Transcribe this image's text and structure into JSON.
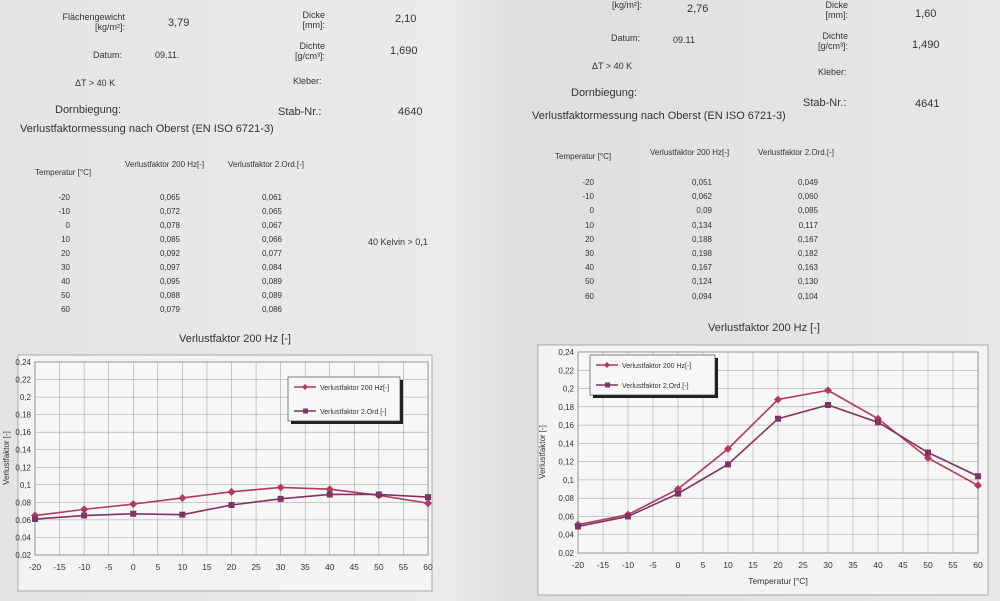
{
  "panels": [
    {
      "fields": [
        {
          "label": "Flächengewicht\n[kg/m²]:",
          "value": "3,79"
        },
        {
          "label": "Dicke\n[mm]:",
          "value": "2,10"
        },
        {
          "label": "Datum:",
          "value": "09.11."
        },
        {
          "label": "Dichte\n[g/cm³]:",
          "value": "1,690"
        }
      ],
      "delta_t": "ΔT > 40 K",
      "kleber": "Kleber:",
      "dornbiegung": "Dornbiegung:",
      "stab_label": "Stab-Nr.:",
      "stab_nr": "4640",
      "heading": "Verlustfaktormessung nach Oberst (EN ISO 6721-3)",
      "table": {
        "header": [
          "Temperatur [°C]",
          "Verlustfaktor 200 Hz[-]",
          "Verlustfaktor 2.Ord.[-]"
        ],
        "rows": [
          [
            "-20",
            "0,065",
            "0,061"
          ],
          [
            "-10",
            "0,072",
            "0,065"
          ],
          [
            "0",
            "0,078",
            "0,067"
          ],
          [
            "10",
            "0,085",
            "0,066"
          ],
          [
            "20",
            "0,092",
            "0,077"
          ],
          [
            "30",
            "0,097",
            "0,084"
          ],
          [
            "40",
            "0,095",
            "0,089"
          ],
          [
            "50",
            "0,088",
            "0,089"
          ],
          [
            "60",
            "0,079",
            "0,086"
          ]
        ]
      },
      "note": "40 Kelvin > 0,1",
      "chart": {
        "type": "line",
        "title": "Verlustfaktor 200 Hz [-]",
        "y_label": "Verlustfaktor [-]",
        "x": [
          -20,
          -10,
          0,
          10,
          20,
          30,
          40,
          50,
          60
        ],
        "series": [
          {
            "name": "Verlustfaktor 200 Hz[-]",
            "color": "#b23a5e",
            "values": [
              0.065,
              0.072,
              0.078,
              0.085,
              0.092,
              0.097,
              0.095,
              0.088,
              0.079
            ]
          },
          {
            "name": "Verlustfaktor 2.Ord.[-]",
            "color": "#7e3566",
            "values": [
              0.061,
              0.065,
              0.067,
              0.066,
              0.077,
              0.084,
              0.089,
              0.089,
              0.086
            ]
          }
        ],
        "xlim": [
          -20,
          60
        ],
        "xticks": [
          -20,
          -15,
          -10,
          -5,
          0,
          5,
          10,
          15,
          20,
          25,
          30,
          35,
          40,
          45,
          50,
          55,
          60
        ],
        "ylim": [
          0.02,
          0.24
        ],
        "yticks": [
          {
            "value": 0.02,
            "label": "0,02"
          },
          {
            "value": 0.04,
            "label": "0,04"
          },
          {
            "value": 0.06,
            "label": "0,06"
          },
          {
            "value": 0.08,
            "label": "0,08"
          },
          {
            "value": 0.1,
            "label": "0,1"
          },
          {
            "value": 0.12,
            "label": "0,12"
          },
          {
            "value": 0.14,
            "label": "0,14"
          },
          {
            "value": 0.16,
            "label": "0,16"
          },
          {
            "value": 0.18,
            "label": "0,18"
          },
          {
            "value": 0.2,
            "label": "0,2"
          },
          {
            "value": 0.22,
            "label": "0,22"
          },
          {
            "value": 0.24,
            "label": "0,24"
          }
        ],
        "grid": true
      }
    },
    {
      "fields": [
        {
          "label": "[kg/m²]:",
          "value": "2,76"
        },
        {
          "label": "Dicke\n[mm]:",
          "value": "1,60"
        },
        {
          "label": "Datum:",
          "value": "09.11"
        },
        {
          "label": "Dichte\n[g/cm³]:",
          "value": "1,490"
        }
      ],
      "delta_t": "ΔT > 40 K",
      "kleber": "Kleber:",
      "dornbiegung": "Dornbiegung:",
      "stab_label": "Stab-Nr.:",
      "stab_nr": "4641",
      "heading": "Verlustfaktormessung nach Oberst (EN ISO 6721-3)",
      "table": {
        "header": [
          "Temperatur [°C]",
          "Verlustfaktor 200 Hz[-]",
          "Verlustfaktor 2.Ord.[-]"
        ],
        "rows": [
          [
            "-20",
            "0,051",
            "0,049"
          ],
          [
            "-10",
            "0,062",
            "0,060"
          ],
          [
            "0",
            "0,09",
            "0,085"
          ],
          [
            "10",
            "0,134",
            "0,117"
          ],
          [
            "20",
            "0,188",
            "0,167"
          ],
          [
            "30",
            "0,198",
            "0,182"
          ],
          [
            "40",
            "0,167",
            "0,163"
          ],
          [
            "50",
            "0,124",
            "0,130"
          ],
          [
            "60",
            "0,094",
            "0,104"
          ]
        ]
      },
      "chart": {
        "type": "line",
        "title": "Verlustfaktor 200 Hz [-]",
        "y_label": "Verlustfaktor [-]",
        "x_label": "Temperatur [°C]",
        "x": [
          -20,
          -10,
          0,
          10,
          20,
          30,
          40,
          50,
          60
        ],
        "series": [
          {
            "name": "Verlustfaktor 200 Hz[-]",
            "color": "#b23a5e",
            "values": [
              0.051,
              0.062,
              0.09,
              0.134,
              0.188,
              0.198,
              0.167,
              0.124,
              0.094
            ]
          },
          {
            "name": "Verlustfaktor 2.Ord.[-]",
            "color": "#7e3566",
            "values": [
              0.049,
              0.06,
              0.085,
              0.117,
              0.167,
              0.182,
              0.163,
              0.13,
              0.104
            ]
          }
        ],
        "xlim": [
          -20,
          60
        ],
        "xticks": [
          -20,
          -15,
          -10,
          -5,
          0,
          5,
          10,
          15,
          20,
          25,
          30,
          35,
          40,
          45,
          50,
          55,
          60
        ],
        "ylim": [
          0.02,
          0.24
        ],
        "yticks": [
          {
            "value": 0.02,
            "label": "0,02"
          },
          {
            "value": 0.04,
            "label": "0,04"
          },
          {
            "value": 0.06,
            "label": "0,06"
          },
          {
            "value": 0.08,
            "label": "0,08"
          },
          {
            "value": 0.1,
            "label": "0,1"
          },
          {
            "value": 0.12,
            "label": "0,12"
          },
          {
            "value": 0.14,
            "label": "0,14"
          },
          {
            "value": 0.16,
            "label": "0,16"
          },
          {
            "value": 0.18,
            "label": "0,18"
          },
          {
            "value": 0.2,
            "label": "0,2"
          },
          {
            "value": 0.22,
            "label": "0,22"
          },
          {
            "value": 0.24,
            "label": "0,24"
          }
        ],
        "grid": true
      }
    }
  ]
}
